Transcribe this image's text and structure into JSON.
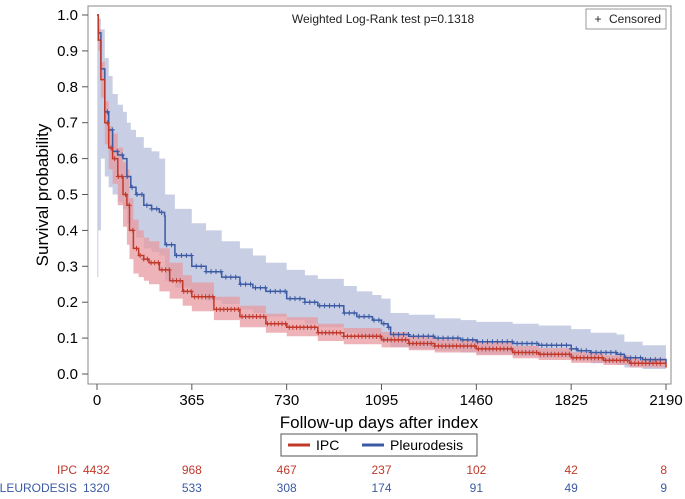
{
  "chart_data": {
    "type": "line",
    "subtype": "kaplan-meier",
    "annotation": "Weighted Log-Rank test p=0.1318",
    "censored_legend": "Censored",
    "censored_marker": "+",
    "xlabel": "Follow-up days after index",
    "ylabel": "Survival probability",
    "xlim": [
      0,
      2190
    ],
    "ylim": [
      0,
      1.0
    ],
    "x_ticks": [
      0,
      365,
      730,
      1095,
      1460,
      1825,
      2190
    ],
    "x_tick_labels": [
      "0",
      "365",
      "730",
      "1095",
      "1460",
      "1825",
      "2190"
    ],
    "y_ticks": [
      0.0,
      0.1,
      0.2,
      0.3,
      0.4,
      0.5,
      0.6,
      0.7,
      0.8,
      0.9,
      1.0
    ],
    "y_tick_labels": [
      "0.0",
      "0.1",
      "0.2",
      "0.3",
      "0.4",
      "0.5",
      "0.6",
      "0.7",
      "0.8",
      "0.9",
      "1.0"
    ],
    "legend_position": "bottom-center",
    "series": [
      {
        "name": "IPC",
        "color": "#c0392b",
        "band_color": "#e79aa0",
        "points": [
          [
            0,
            1.0
          ],
          [
            5,
            0.93
          ],
          [
            15,
            0.82
          ],
          [
            30,
            0.7
          ],
          [
            45,
            0.63
          ],
          [
            60,
            0.6
          ],
          [
            80,
            0.55
          ],
          [
            100,
            0.5
          ],
          [
            115,
            0.47
          ],
          [
            125,
            0.4
          ],
          [
            140,
            0.35
          ],
          [
            160,
            0.33
          ],
          [
            180,
            0.32
          ],
          [
            200,
            0.31
          ],
          [
            240,
            0.29
          ],
          [
            280,
            0.26
          ],
          [
            330,
            0.23
          ],
          [
            365,
            0.215
          ],
          [
            450,
            0.18
          ],
          [
            550,
            0.16
          ],
          [
            650,
            0.14
          ],
          [
            730,
            0.13
          ],
          [
            850,
            0.115
          ],
          [
            950,
            0.105
          ],
          [
            1095,
            0.095
          ],
          [
            1200,
            0.085
          ],
          [
            1300,
            0.078
          ],
          [
            1460,
            0.07
          ],
          [
            1600,
            0.06
          ],
          [
            1700,
            0.055
          ],
          [
            1825,
            0.045
          ],
          [
            1950,
            0.038
          ],
          [
            2050,
            0.03
          ],
          [
            2190,
            0.018
          ]
        ],
        "lower": [
          [
            0,
            1.0
          ],
          [
            5,
            0.9
          ],
          [
            15,
            0.77
          ],
          [
            30,
            0.64
          ],
          [
            45,
            0.57
          ],
          [
            60,
            0.53
          ],
          [
            80,
            0.47
          ],
          [
            100,
            0.41
          ],
          [
            115,
            0.36
          ],
          [
            125,
            0.32
          ],
          [
            140,
            0.28
          ],
          [
            160,
            0.27
          ],
          [
            180,
            0.26
          ],
          [
            200,
            0.25
          ],
          [
            240,
            0.23
          ],
          [
            280,
            0.21
          ],
          [
            330,
            0.19
          ],
          [
            365,
            0.175
          ],
          [
            450,
            0.15
          ],
          [
            550,
            0.13
          ],
          [
            650,
            0.115
          ],
          [
            730,
            0.105
          ],
          [
            850,
            0.092
          ],
          [
            950,
            0.083
          ],
          [
            1095,
            0.074
          ],
          [
            1200,
            0.066
          ],
          [
            1300,
            0.06
          ],
          [
            1460,
            0.052
          ],
          [
            1600,
            0.044
          ],
          [
            1700,
            0.039
          ],
          [
            1825,
            0.031
          ],
          [
            1950,
            0.025
          ],
          [
            2050,
            0.018
          ],
          [
            2190,
            0.008
          ]
        ],
        "upper": [
          [
            0,
            1.0
          ],
          [
            5,
            0.96
          ],
          [
            15,
            0.87
          ],
          [
            30,
            0.76
          ],
          [
            45,
            0.69
          ],
          [
            60,
            0.67
          ],
          [
            80,
            0.63
          ],
          [
            100,
            0.59
          ],
          [
            115,
            0.57
          ],
          [
            125,
            0.49
          ],
          [
            140,
            0.43
          ],
          [
            160,
            0.4
          ],
          [
            180,
            0.38
          ],
          [
            200,
            0.37
          ],
          [
            240,
            0.35
          ],
          [
            280,
            0.31
          ],
          [
            330,
            0.275
          ],
          [
            365,
            0.255
          ],
          [
            450,
            0.215
          ],
          [
            550,
            0.19
          ],
          [
            650,
            0.168
          ],
          [
            730,
            0.158
          ],
          [
            850,
            0.14
          ],
          [
            950,
            0.128
          ],
          [
            1095,
            0.117
          ],
          [
            1200,
            0.105
          ],
          [
            1300,
            0.097
          ],
          [
            1460,
            0.09
          ],
          [
            1600,
            0.078
          ],
          [
            1700,
            0.072
          ],
          [
            1825,
            0.061
          ],
          [
            1950,
            0.052
          ],
          [
            2050,
            0.044
          ],
          [
            2190,
            0.03
          ]
        ]
      },
      {
        "name": "Pleurodesis",
        "color": "#3b5aa3",
        "band_color": "#aab4d6",
        "points": [
          [
            0,
            1.0
          ],
          [
            5,
            0.95
          ],
          [
            15,
            0.85
          ],
          [
            30,
            0.73
          ],
          [
            45,
            0.68
          ],
          [
            60,
            0.62
          ],
          [
            80,
            0.61
          ],
          [
            100,
            0.6
          ],
          [
            115,
            0.55
          ],
          [
            130,
            0.52
          ],
          [
            150,
            0.5
          ],
          [
            180,
            0.47
          ],
          [
            210,
            0.46
          ],
          [
            240,
            0.45
          ],
          [
            260,
            0.44
          ],
          [
            262,
            0.36
          ],
          [
            300,
            0.33
          ],
          [
            365,
            0.3
          ],
          [
            420,
            0.285
          ],
          [
            480,
            0.27
          ],
          [
            550,
            0.25
          ],
          [
            600,
            0.24
          ],
          [
            650,
            0.23
          ],
          [
            730,
            0.21
          ],
          [
            800,
            0.2
          ],
          [
            850,
            0.19
          ],
          [
            950,
            0.17
          ],
          [
            1000,
            0.16
          ],
          [
            1060,
            0.15
          ],
          [
            1095,
            0.14
          ],
          [
            1120,
            0.13
          ],
          [
            1130,
            0.11
          ],
          [
            1200,
            0.105
          ],
          [
            1300,
            0.1
          ],
          [
            1400,
            0.095
          ],
          [
            1460,
            0.09
          ],
          [
            1600,
            0.085
          ],
          [
            1700,
            0.08
          ],
          [
            1825,
            0.07
          ],
          [
            1850,
            0.065
          ],
          [
            1900,
            0.06
          ],
          [
            2000,
            0.055
          ],
          [
            2030,
            0.045
          ],
          [
            2100,
            0.04
          ],
          [
            2190,
            0.03
          ]
        ],
        "lower": [
          [
            0,
            1.0
          ],
          [
            1,
            0.27
          ],
          [
            5,
            0.4
          ],
          [
            15,
            0.6
          ],
          [
            30,
            0.55
          ],
          [
            45,
            0.52
          ],
          [
            60,
            0.5
          ],
          [
            80,
            0.48
          ],
          [
            100,
            0.46
          ],
          [
            115,
            0.42
          ],
          [
            130,
            0.4
          ],
          [
            150,
            0.38
          ],
          [
            180,
            0.35
          ],
          [
            210,
            0.34
          ],
          [
            240,
            0.33
          ],
          [
            262,
            0.26
          ],
          [
            300,
            0.24
          ],
          [
            365,
            0.22
          ],
          [
            420,
            0.205
          ],
          [
            480,
            0.195
          ],
          [
            550,
            0.18
          ],
          [
            600,
            0.17
          ],
          [
            650,
            0.16
          ],
          [
            730,
            0.15
          ],
          [
            800,
            0.14
          ],
          [
            850,
            0.13
          ],
          [
            950,
            0.115
          ],
          [
            1000,
            0.105
          ],
          [
            1060,
            0.098
          ],
          [
            1095,
            0.09
          ],
          [
            1130,
            0.075
          ],
          [
            1200,
            0.07
          ],
          [
            1300,
            0.065
          ],
          [
            1400,
            0.06
          ],
          [
            1460,
            0.055
          ],
          [
            1600,
            0.05
          ],
          [
            1700,
            0.045
          ],
          [
            1825,
            0.038
          ],
          [
            1900,
            0.03
          ],
          [
            2000,
            0.025
          ],
          [
            2030,
            0.018
          ],
          [
            2100,
            0.014
          ],
          [
            2190,
            0.01
          ]
        ],
        "upper": [
          [
            0,
            1.0
          ],
          [
            5,
            0.99
          ],
          [
            15,
            0.96
          ],
          [
            30,
            0.88
          ],
          [
            45,
            0.83
          ],
          [
            60,
            0.78
          ],
          [
            80,
            0.75
          ],
          [
            100,
            0.73
          ],
          [
            115,
            0.7
          ],
          [
            130,
            0.68
          ],
          [
            150,
            0.66
          ],
          [
            180,
            0.63
          ],
          [
            210,
            0.62
          ],
          [
            240,
            0.6
          ],
          [
            262,
            0.5
          ],
          [
            300,
            0.46
          ],
          [
            365,
            0.42
          ],
          [
            420,
            0.4
          ],
          [
            480,
            0.37
          ],
          [
            550,
            0.35
          ],
          [
            600,
            0.33
          ],
          [
            650,
            0.31
          ],
          [
            730,
            0.29
          ],
          [
            800,
            0.275
          ],
          [
            850,
            0.265
          ],
          [
            950,
            0.245
          ],
          [
            1000,
            0.23
          ],
          [
            1060,
            0.22
          ],
          [
            1095,
            0.21
          ],
          [
            1130,
            0.17
          ],
          [
            1200,
            0.165
          ],
          [
            1300,
            0.155
          ],
          [
            1400,
            0.15
          ],
          [
            1460,
            0.145
          ],
          [
            1600,
            0.14
          ],
          [
            1700,
            0.135
          ],
          [
            1825,
            0.125
          ],
          [
            1900,
            0.115
          ],
          [
            2000,
            0.11
          ],
          [
            2030,
            0.09
          ],
          [
            2100,
            0.08
          ],
          [
            2190,
            0.075
          ]
        ]
      }
    ],
    "at_risk": {
      "times": [
        0,
        365,
        730,
        1095,
        1460,
        1825,
        2190
      ],
      "rows": [
        {
          "label": "IPC",
          "color": "#c0392b",
          "values": [
            "4432",
            "968",
            "467",
            "237",
            "102",
            "42",
            "8"
          ]
        },
        {
          "label": "PLEURODESIS",
          "color": "#3b5aa3",
          "values": [
            "1320",
            "533",
            "308",
            "174",
            "91",
            "49",
            "9"
          ]
        }
      ]
    }
  }
}
